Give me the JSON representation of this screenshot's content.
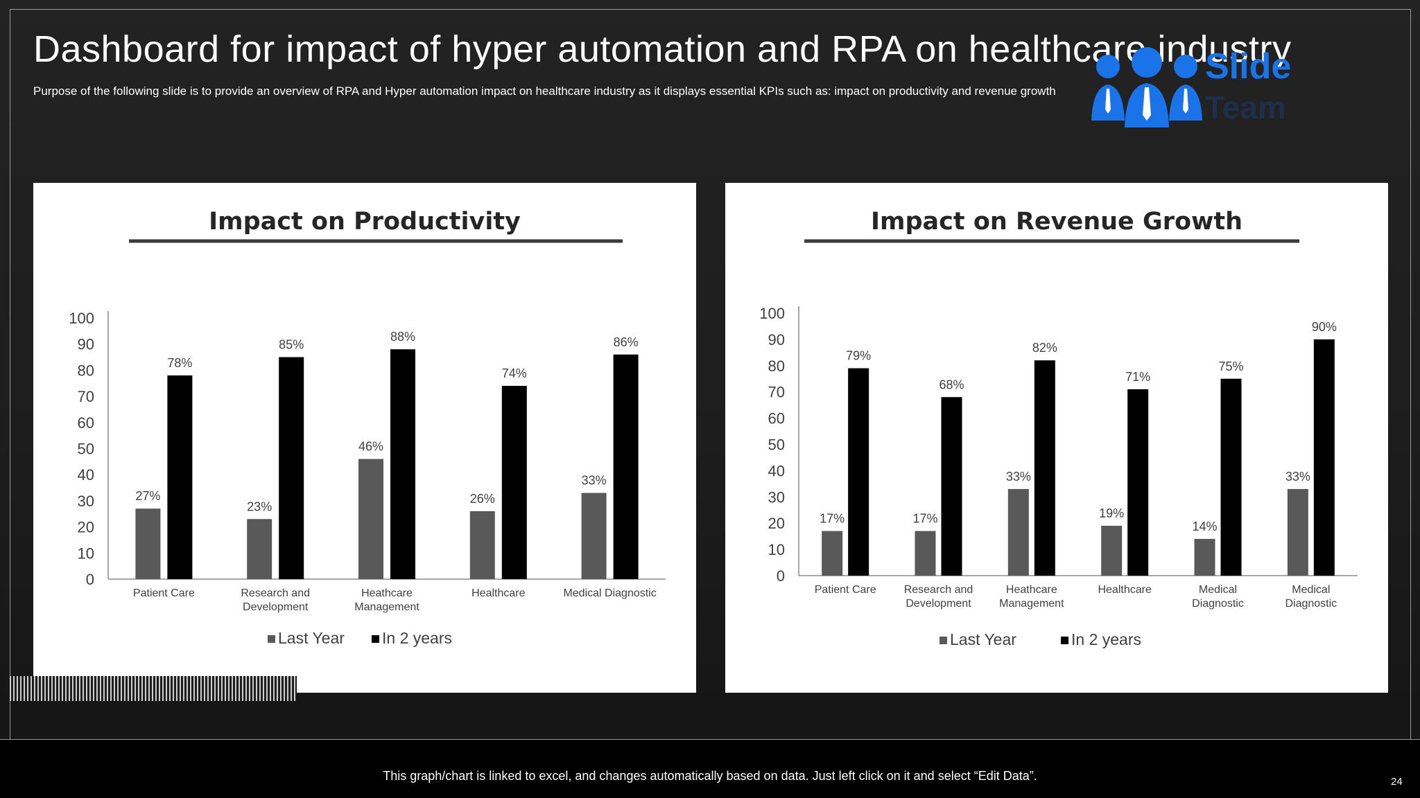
{
  "slide": {
    "title": "Dashboard for impact of hyper automation and RPA on healthcare industry",
    "subtitle": "Purpose of the following slide is to provide an overview of RPA and Hyper automation impact on healthcare industry as it displays essential KPIs such as: impact on productivity and revenue growth",
    "footer_note": "This graph/chart is linked to excel, and changes automatically based on data. Just left click on it and select “Edit Data”.",
    "page_number": "24",
    "logo": {
      "word1": "Slide",
      "word2": "Team",
      "icon": "people-group-icon",
      "color": "#1a73e8"
    }
  },
  "chart_data": [
    {
      "type": "bar",
      "title": "Impact on Productivity",
      "categories": [
        "Patient Care",
        "Research and\nDevelopment",
        "Heathcare\nManagement",
        "Healthcare",
        "Medical Diagnostic"
      ],
      "series": [
        {
          "name": "Last Year",
          "values": [
            27,
            23,
            46,
            26,
            33
          ],
          "labels": [
            "27%",
            "23%",
            "46%",
            "26%",
            "33%"
          ],
          "color": "#595959"
        },
        {
          "name": "In 2 years",
          "values": [
            78,
            85,
            88,
            74,
            86
          ],
          "labels": [
            "78%",
            "85%",
            "88%",
            "74%",
            "86%"
          ],
          "color": "#000000"
        }
      ],
      "yticks": [
        "0",
        "10",
        "20",
        "30",
        "40",
        "50",
        "60",
        "70",
        "80",
        "90",
        "100"
      ],
      "ylim": [
        0,
        100
      ],
      "grid": false,
      "legend": "bottom"
    },
    {
      "type": "bar",
      "title": "Impact on Revenue Growth",
      "categories": [
        "Patient Care",
        "Research and\nDevelopment",
        "Heathcare\nManagement",
        "Healthcare",
        "Medical\nDiagnostic",
        "Medical\nDiagnostic"
      ],
      "series": [
        {
          "name": "Last Year",
          "values": [
            17,
            17,
            33,
            19,
            14,
            33
          ],
          "labels": [
            "17%",
            "17%",
            "33%",
            "19%",
            "14%",
            "33%"
          ],
          "color": "#595959"
        },
        {
          "name": "In 2 years",
          "values": [
            79,
            68,
            82,
            71,
            75,
            90
          ],
          "labels": [
            "79%",
            "68%",
            "82%",
            "71%",
            "75%",
            "90%"
          ],
          "color": "#000000"
        }
      ],
      "yticks": [
        "0",
        "10",
        "20",
        "30",
        "40",
        "50",
        "60",
        "70",
        "80",
        "90",
        "100"
      ],
      "ylim": [
        0,
        100
      ],
      "grid": false,
      "legend": "bottom"
    }
  ]
}
